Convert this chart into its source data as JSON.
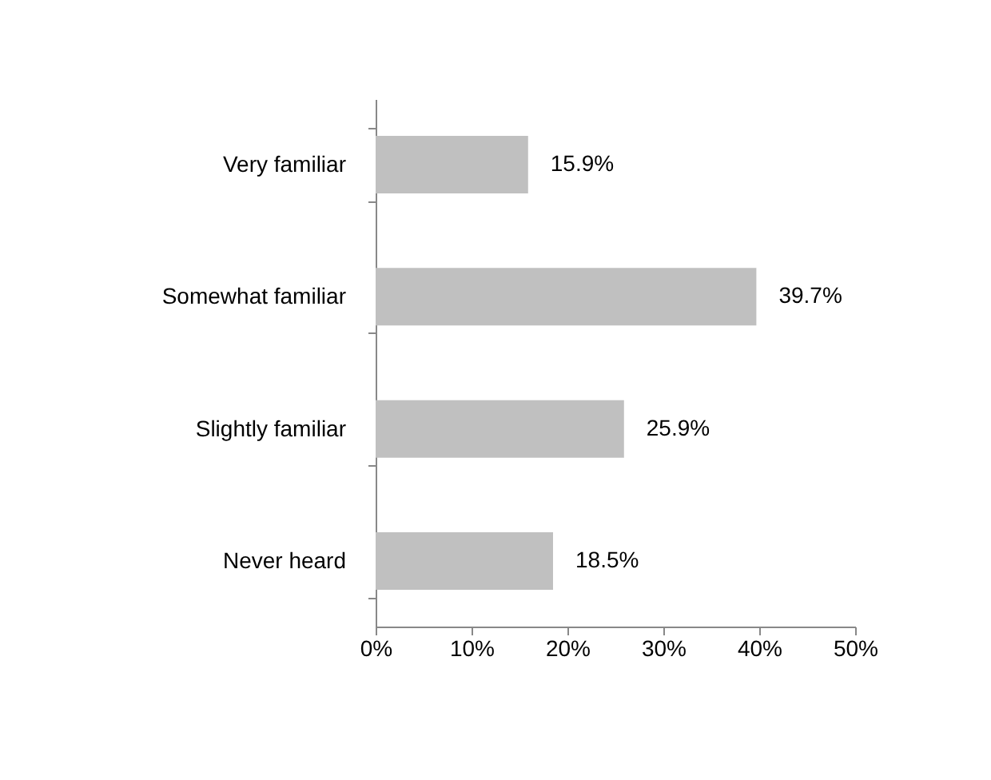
{
  "chart_data": {
    "type": "bar",
    "orientation": "horizontal",
    "categories": [
      "Very familiar",
      "Somewhat familiar",
      "Slightly familiar",
      "Never heard"
    ],
    "values": [
      15.9,
      39.7,
      25.9,
      18.5
    ],
    "value_labels": [
      "15.9%",
      "39.7%",
      "25.9%",
      "18.5%"
    ],
    "color": "#c0c0c0",
    "xlim": [
      0,
      50
    ],
    "xticks": [
      {
        "value": 0,
        "label": "0%"
      },
      {
        "value": 10,
        "label": "10%"
      },
      {
        "value": 20,
        "label": "20%"
      },
      {
        "value": 30,
        "label": "30%"
      },
      {
        "value": 40,
        "label": "40%"
      },
      {
        "value": 50,
        "label": "50%"
      }
    ],
    "grid": false
  }
}
